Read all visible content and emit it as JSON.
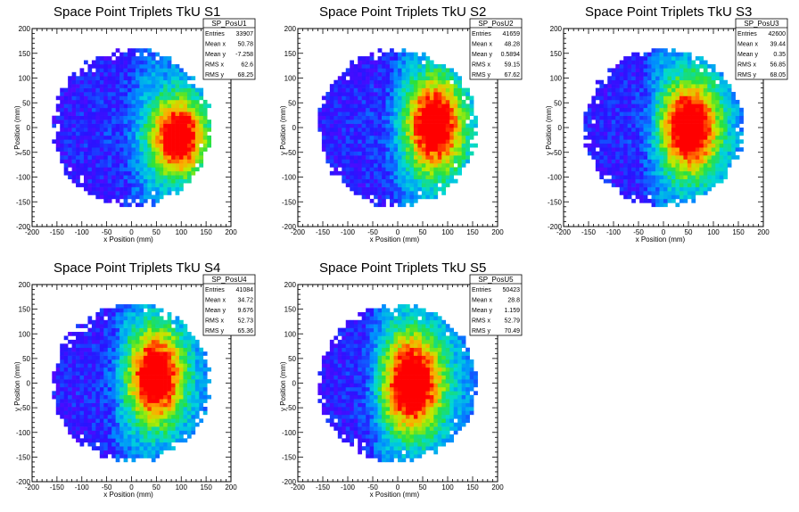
{
  "chart_data": [
    {
      "type": "heatmap",
      "title": "Space Point Triplets TkU S1",
      "xlabel": "x Position (mm)",
      "ylabel": "y Position (mm)",
      "xlim": [
        -200,
        200
      ],
      "ylim": [
        -200,
        200
      ],
      "xticks": [
        -200,
        -150,
        -100,
        -50,
        0,
        50,
        100,
        150,
        200
      ],
      "yticks": [
        -200,
        -150,
        -100,
        -50,
        0,
        50,
        100,
        150,
        200
      ],
      "colormap": "rainbow (violet-blue-cyan-green-yellow-red)",
      "distribution": {
        "disk_radius": 158,
        "hot_x": 95,
        "hot_y": -20,
        "hot_sx": 40,
        "hot_sy": 58,
        "inner_dark_edge_x": 5
      },
      "stats": {
        "name": "SP_PosU1",
        "rows": [
          {
            "label": "Entries",
            "value": "33907"
          },
          {
            "label": "Mean x",
            "value": "50.78"
          },
          {
            "label": "Mean y",
            "value": "-7.258"
          },
          {
            "label": "RMS x",
            "value": "62.6"
          },
          {
            "label": "RMS y",
            "value": "68.25"
          }
        ]
      }
    },
    {
      "type": "heatmap",
      "title": "Space Point Triplets TkU S2",
      "xlabel": "x Position (mm)",
      "ylabel": "y Position (mm)",
      "xlim": [
        -200,
        200
      ],
      "ylim": [
        -200,
        200
      ],
      "xticks": [
        -200,
        -150,
        -100,
        -50,
        0,
        50,
        100,
        150,
        200
      ],
      "yticks": [
        -200,
        -150,
        -100,
        -50,
        0,
        50,
        100,
        150,
        200
      ],
      "colormap": "rainbow (violet-blue-cyan-green-yellow-red)",
      "distribution": {
        "disk_radius": 158,
        "hot_x": 75,
        "hot_y": 5,
        "hot_sx": 42,
        "hot_sy": 70,
        "inner_dark_edge_x": -5
      },
      "stats": {
        "name": "SP_PosU2",
        "rows": [
          {
            "label": "Entries",
            "value": "41659"
          },
          {
            "label": "Mean x",
            "value": "48.28"
          },
          {
            "label": "Mean y",
            "value": "0.5894"
          },
          {
            "label": "RMS x",
            "value": "59.15"
          },
          {
            "label": "RMS y",
            "value": "67.62"
          }
        ]
      }
    },
    {
      "type": "heatmap",
      "title": "Space Point Triplets TkU S3",
      "xlabel": "x Position (mm)",
      "ylabel": "y Position (mm)",
      "xlim": [
        -200,
        200
      ],
      "ylim": [
        -200,
        200
      ],
      "xticks": [
        -200,
        -150,
        -100,
        -50,
        0,
        50,
        100,
        150,
        200
      ],
      "yticks": [
        -200,
        -150,
        -100,
        -50,
        0,
        50,
        100,
        150,
        200
      ],
      "colormap": "rainbow (violet-blue-cyan-green-yellow-red)",
      "distribution": {
        "disk_radius": 158,
        "hot_x": 55,
        "hot_y": 0,
        "hot_sx": 42,
        "hot_sy": 70,
        "inner_dark_edge_x": -25
      },
      "stats": {
        "name": "SP_PosU3",
        "rows": [
          {
            "label": "Entries",
            "value": "42600"
          },
          {
            "label": "Mean x",
            "value": "39.44"
          },
          {
            "label": "Mean y",
            "value": "0.35"
          },
          {
            "label": "RMS x",
            "value": "56.85"
          },
          {
            "label": "RMS y",
            "value": "68.05"
          }
        ]
      }
    },
    {
      "type": "heatmap",
      "title": "Space Point Triplets TkU S4",
      "xlabel": "x Position (mm)",
      "ylabel": "y Position (mm)",
      "xlim": [
        -200,
        200
      ],
      "ylim": [
        -200,
        200
      ],
      "xticks": [
        -200,
        -150,
        -100,
        -50,
        0,
        50,
        100,
        150,
        200
      ],
      "yticks": [
        -200,
        -150,
        -100,
        -50,
        0,
        50,
        100,
        150,
        200
      ],
      "colormap": "rainbow (violet-blue-cyan-green-yellow-red)",
      "distribution": {
        "disk_radius": 158,
        "hot_x": 50,
        "hot_y": 15,
        "hot_sx": 40,
        "hot_sy": 70,
        "inner_dark_edge_x": -30
      },
      "stats": {
        "name": "SP_PosU4",
        "rows": [
          {
            "label": "Entries",
            "value": "41084"
          },
          {
            "label": "Mean x",
            "value": "34.72"
          },
          {
            "label": "Mean y",
            "value": "9.676"
          },
          {
            "label": "RMS x",
            "value": "52.73"
          },
          {
            "label": "RMS y",
            "value": "65.36"
          }
        ]
      }
    },
    {
      "type": "heatmap",
      "title": "Space Point Triplets TkU S5",
      "xlabel": "x Position (mm)",
      "ylabel": "y Position (mm)",
      "xlim": [
        -200,
        200
      ],
      "ylim": [
        -200,
        200
      ],
      "xticks": [
        -200,
        -150,
        -100,
        -50,
        0,
        50,
        100,
        150,
        200
      ],
      "yticks": [
        -200,
        -150,
        -100,
        -50,
        0,
        50,
        100,
        150,
        200
      ],
      "colormap": "rainbow (violet-blue-cyan-green-yellow-red)",
      "distribution": {
        "disk_radius": 158,
        "hot_x": 30,
        "hot_y": 0,
        "hot_sx": 45,
        "hot_sy": 75,
        "inner_dark_edge_x": -45
      },
      "stats": {
        "name": "SP_PosU5",
        "rows": [
          {
            "label": "Entries",
            "value": "50423"
          },
          {
            "label": "Mean x",
            "value": "28.8"
          },
          {
            "label": "Mean y",
            "value": "1.159"
          },
          {
            "label": "RMS x",
            "value": "52.79"
          },
          {
            "label": "RMS y",
            "value": "70.49"
          }
        ]
      }
    }
  ]
}
